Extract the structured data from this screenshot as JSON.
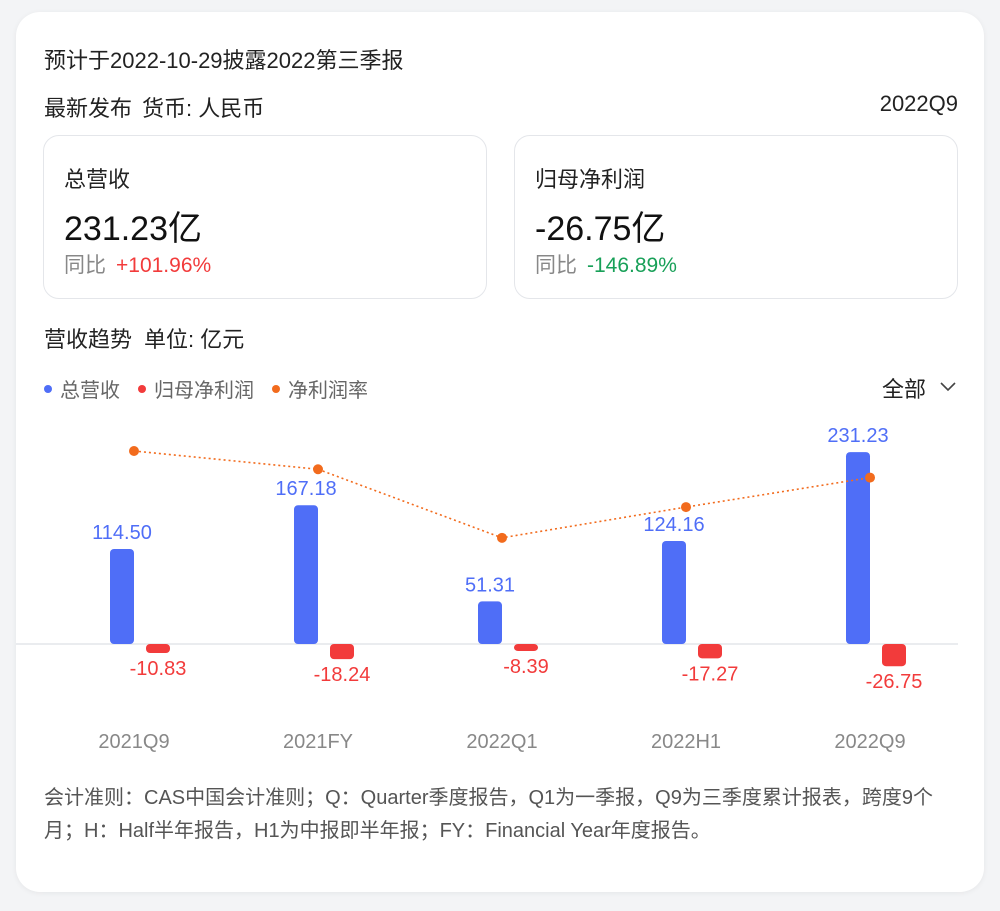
{
  "header": {
    "disclosure": "预计于2022-10-29披露2022第三季报",
    "latest_label": "最新发布",
    "currency": "货币: 人民币",
    "period": "2022Q9"
  },
  "stats": [
    {
      "label": "总营收",
      "value": "231.23亿",
      "yoy_label": "同比",
      "yoy": "+101.96%"
    },
    {
      "label": "归母净利润",
      "value": "-26.75亿",
      "yoy_label": "同比",
      "yoy": "-146.89%"
    }
  ],
  "section": {
    "title": "营收趋势",
    "unit": "单位: 亿元"
  },
  "filter": {
    "label": "全部"
  },
  "colors": {
    "revenue": "#4f6ef7",
    "profit": "#f23b3b",
    "margin": "#f26b1d",
    "yoy_up": "#f23b3b",
    "yoy_down": "#18a058"
  },
  "chart_data": {
    "type": "bar",
    "categories": [
      "2021Q9",
      "2021FY",
      "2022Q1",
      "2022H1",
      "2022Q9"
    ],
    "series": [
      {
        "name": "总营收",
        "type": "bar",
        "values": [
          114.5,
          167.18,
          51.31,
          124.16,
          231.23
        ],
        "labels": [
          "114.50",
          "167.18",
          "51.31",
          "124.16",
          "231.23"
        ]
      },
      {
        "name": "归母净利润",
        "type": "bar",
        "values": [
          -10.83,
          -18.24,
          -8.39,
          -17.27,
          -26.75
        ],
        "labels": [
          "-10.83",
          "-18.24",
          "-8.39",
          "-17.27",
          "-26.75"
        ]
      },
      {
        "name": "净利润率",
        "type": "line",
        "values": [
          -9.46,
          -10.91,
          -16.35,
          -13.91,
          -11.57
        ]
      }
    ]
  },
  "footnote": "会计准则：CAS中国会计准则；Q：Quarter季度报告，Q1为一季报，Q9为三季度累计报表，跨度9个月；H：Half半年报告，H1为中报即半年报；FY：Financial Year年度报告。"
}
